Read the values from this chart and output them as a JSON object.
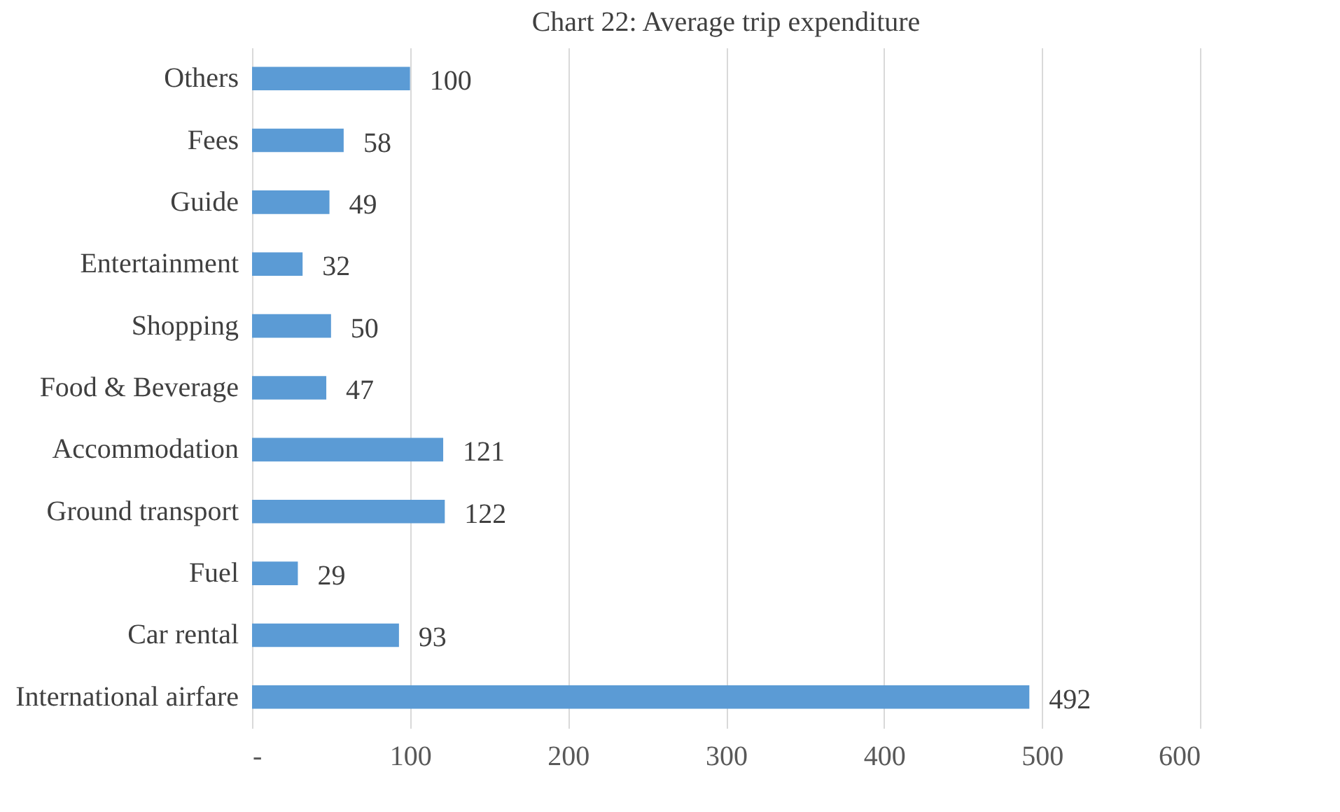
{
  "chart_data": {
    "type": "bar",
    "orientation": "horizontal",
    "title": "Chart 22: Average trip expenditure",
    "categories": [
      "Others",
      "Fees",
      "Guide",
      "Entertainment",
      "Shopping",
      "Food & Beverage",
      "Accommodation",
      "Ground transport",
      "Fuel",
      "Car rental",
      "International airfare"
    ],
    "values": [
      100,
      58,
      49,
      32,
      50,
      47,
      121,
      122,
      29,
      93,
      492
    ],
    "color": "#5b9bd5",
    "xlim": [
      0,
      600
    ],
    "xticks": [
      {
        "value": 0,
        "label": "-"
      },
      100,
      200,
      300,
      400,
      500,
      600
    ],
    "grid": "x",
    "data_labels": true
  }
}
